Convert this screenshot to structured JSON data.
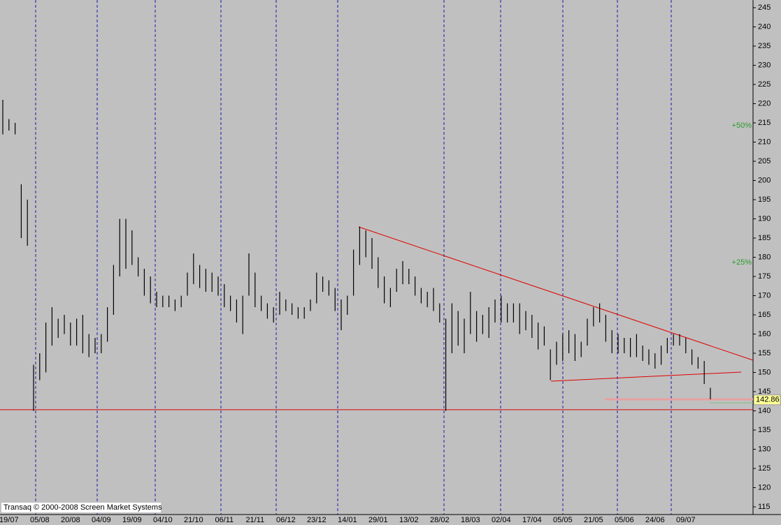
{
  "chart_data": {
    "type": "range-bar",
    "watermark": "Transaq © 2000-2008 Screen Market Systems",
    "categories": [
      null,
      "19/07",
      null,
      null,
      null,
      null,
      "05/08",
      null,
      null,
      null,
      null,
      "20/08",
      null,
      null,
      null,
      null,
      "04/09",
      null,
      null,
      null,
      null,
      "19/09",
      null,
      null,
      null,
      null,
      "04/10",
      null,
      null,
      null,
      null,
      "21/10",
      null,
      null,
      null,
      null,
      "06/11",
      null,
      null,
      null,
      null,
      "21/11",
      null,
      null,
      null,
      null,
      "06/12",
      null,
      null,
      null,
      null,
      "23/12",
      null,
      null,
      null,
      null,
      "14/01",
      null,
      null,
      null,
      null,
      "29/01",
      null,
      null,
      null,
      null,
      "13/02",
      null,
      null,
      null,
      null,
      "28/02",
      null,
      null,
      null,
      null,
      "18/03",
      null,
      null,
      null,
      null,
      "02/04",
      null,
      null,
      null,
      null,
      "17/04",
      null,
      null,
      null,
      null,
      "05/05",
      null,
      null,
      null,
      null,
      "21/05",
      null,
      null,
      null,
      null,
      "05/06",
      null,
      null,
      null,
      null,
      "24/06",
      null,
      null,
      null,
      null,
      "09/07",
      null,
      null,
      null,
      null
    ],
    "high": [
      221,
      216,
      215,
      199,
      195,
      152,
      155,
      163,
      167,
      164,
      165,
      163,
      164,
      165,
      160,
      159,
      160,
      167,
      178,
      190,
      190,
      187,
      180,
      177,
      175,
      171,
      170,
      170,
      169,
      170,
      176,
      181,
      178,
      177,
      176,
      175,
      173,
      170,
      169,
      170,
      181,
      176,
      170,
      168,
      167,
      171,
      169,
      168,
      167,
      167,
      169,
      176,
      175,
      174,
      172,
      169,
      170,
      182,
      188,
      187,
      185,
      180,
      175,
      172,
      177,
      179,
      177,
      175,
      172,
      171,
      172,
      168,
      164,
      168,
      166,
      164,
      171,
      166,
      165,
      167,
      169,
      170,
      168,
      168,
      168,
      166,
      165,
      163,
      162,
      156,
      158,
      160,
      161,
      160,
      158,
      164,
      167,
      168,
      165,
      161,
      160,
      159,
      159,
      160,
      157,
      156,
      155,
      157,
      159,
      160,
      160,
      159,
      156,
      154,
      153,
      146
    ],
    "low": [
      212,
      213,
      212,
      185,
      183,
      140,
      148,
      150,
      157,
      159,
      160,
      157,
      157,
      155,
      154,
      155,
      155,
      158,
      165,
      175,
      177,
      178,
      175,
      170,
      168,
      167,
      167,
      167,
      166,
      167,
      170,
      173,
      172,
      171,
      171,
      170,
      167,
      166,
      163,
      160,
      170,
      167,
      166,
      164,
      163,
      165,
      166,
      165,
      164,
      164,
      166,
      168,
      171,
      170,
      166,
      161,
      165,
      170,
      178,
      180,
      177,
      172,
      168,
      167,
      171,
      173,
      173,
      170,
      168,
      167,
      166,
      163,
      140,
      155,
      157,
      155,
      160,
      158,
      160,
      159,
      163,
      163,
      163,
      163,
      160,
      161,
      159,
      156,
      157,
      148,
      152,
      153,
      155,
      153,
      154,
      157,
      162,
      163,
      158,
      155,
      155,
      155,
      154,
      154,
      153,
      152,
      151,
      152,
      155,
      157,
      157,
      155,
      152,
      151,
      147,
      143
    ],
    "color": "#000000",
    "ylim": [
      113,
      247
    ],
    "yticks": [
      115,
      120,
      125,
      130,
      135,
      140,
      145,
      150,
      155,
      160,
      165,
      170,
      175,
      180,
      185,
      190,
      195,
      200,
      205,
      210,
      215,
      220,
      225,
      230,
      235,
      240,
      245
    ],
    "support_level": 140.3,
    "last_price": 142.86,
    "levels": [
      {
        "label": "+50%",
        "value": 214.29
      },
      {
        "label": "+25%",
        "value": 178.58
      }
    ]
  }
}
